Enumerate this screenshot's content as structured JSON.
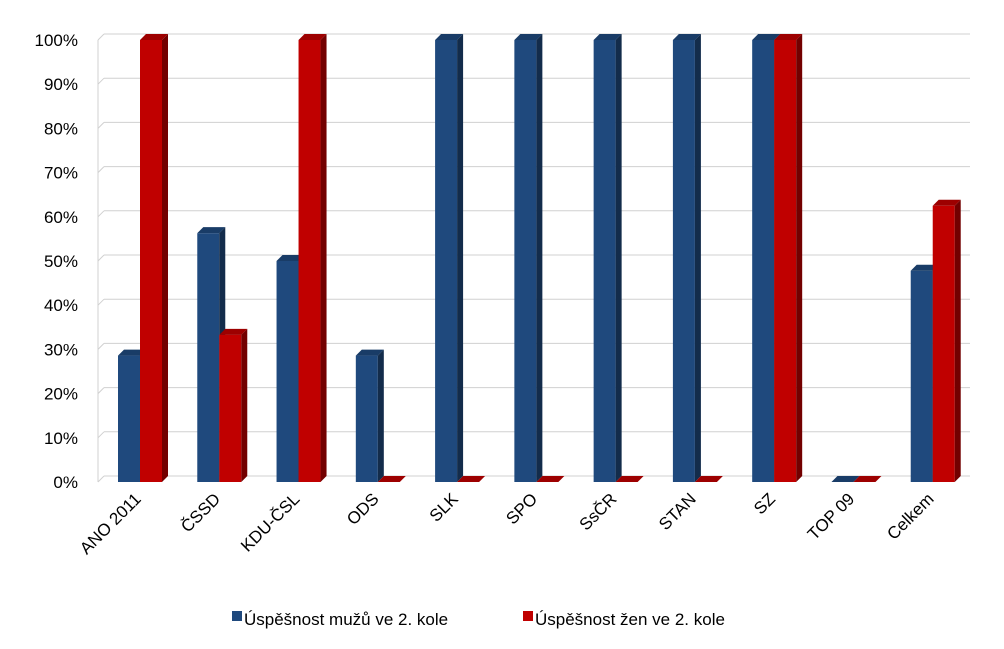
{
  "chart_data": {
    "type": "bar",
    "categories": [
      "ANO 2011",
      "ČSSD",
      "KDU-ČSL",
      "ODS",
      "SLK",
      "SPO",
      "SsČR",
      "STAN",
      "SZ",
      "TOP 09",
      "Celkem"
    ],
    "series": [
      {
        "name": "Úspěšnost mužů ve 2. kole",
        "values": [
          0.286,
          0.563,
          0.5,
          0.286,
          1.0,
          1.0,
          1.0,
          1.0,
          1.0,
          0.0,
          0.478
        ],
        "color": "#1F497D"
      },
      {
        "name": "Úspěšnost žen ve 2. kole",
        "values": [
          1.0,
          0.333,
          1.0,
          0.0,
          0.0,
          0.0,
          0.0,
          0.0,
          1.0,
          0.0,
          0.625
        ],
        "color": "#C00000"
      }
    ],
    "y_ticks": [
      "0%",
      "10%",
      "20%",
      "30%",
      "40%",
      "50%",
      "60%",
      "70%",
      "80%",
      "90%",
      "100%"
    ],
    "ylim": [
      0,
      1
    ],
    "grid": true,
    "legend_position": "bottom",
    "style": "3d-column"
  }
}
